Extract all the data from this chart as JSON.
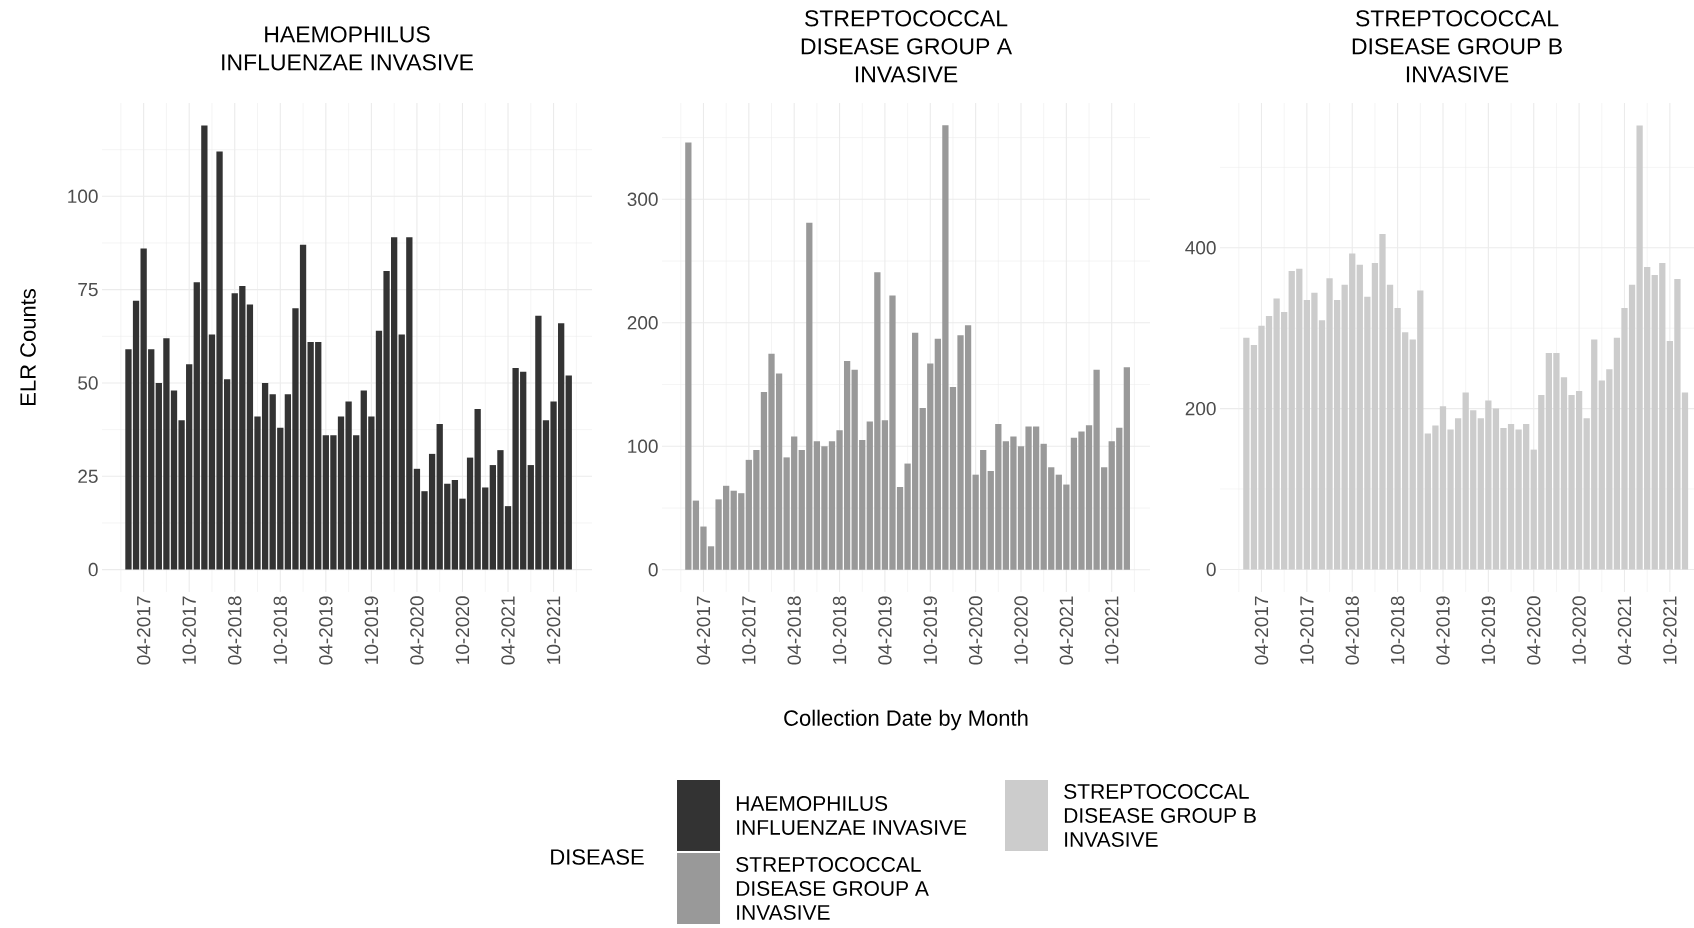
{
  "chart_data": [
    {
      "type": "bar",
      "title": "HAEMOPHILUS INFLUENZAE INVASIVE",
      "ylabel": "ELR Counts",
      "legend": "bottom",
      "grid": true,
      "x": [
        "2017-02",
        "2017-03",
        "2017-04",
        "2017-05",
        "2017-06",
        "2017-07",
        "2017-08",
        "2017-09",
        "2017-10",
        "2017-11",
        "2017-12",
        "2018-01",
        "2018-02",
        "2018-03",
        "2018-04",
        "2018-05",
        "2018-06",
        "2018-07",
        "2018-08",
        "2018-09",
        "2018-10",
        "2018-11",
        "2018-12",
        "2019-01",
        "2019-02",
        "2019-03",
        "2019-04",
        "2019-05",
        "2019-06",
        "2019-07",
        "2019-08",
        "2019-09",
        "2019-10",
        "2019-11",
        "2019-12",
        "2020-01",
        "2020-02",
        "2020-03",
        "2020-04",
        "2020-05",
        "2020-06",
        "2020-07",
        "2020-08",
        "2020-09",
        "2020-10",
        "2020-11",
        "2020-12",
        "2021-01",
        "2021-02",
        "2021-03",
        "2021-04",
        "2021-05",
        "2021-06",
        "2021-07",
        "2021-08",
        "2021-09",
        "2021-10",
        "2021-11",
        "2021-12"
      ],
      "series": [
        {
          "name": "HAEMOPHILUS INFLUENZAE INVASIVE",
          "color": "#333333",
          "values": [
            59,
            72,
            86,
            59,
            50,
            62,
            48,
            40,
            55,
            77,
            119,
            63,
            112,
            51,
            74,
            76,
            71,
            41,
            50,
            47,
            38,
            47,
            70,
            87,
            61,
            61,
            36,
            36,
            41,
            45,
            36,
            48,
            41,
            64,
            80,
            89,
            63,
            89,
            27,
            21,
            31,
            39,
            23,
            24,
            19,
            30,
            43,
            22,
            28,
            32,
            17,
            54,
            53,
            28,
            68,
            40,
            45,
            66,
            52
          ]
        }
      ],
      "xlim": [
        "2016-10-17",
        "2022-03-03"
      ],
      "ylim": [
        -6,
        125
      ],
      "xticks": [
        {
          "value": "2017-01",
          "label": null
        },
        {
          "value": "2017-04",
          "label": "04-2017"
        },
        {
          "value": "2017-07",
          "label": null
        },
        {
          "value": "2017-10",
          "label": "10-2017"
        },
        {
          "value": "2018-01",
          "label": null
        },
        {
          "value": "2018-04",
          "label": "04-2018"
        },
        {
          "value": "2018-07",
          "label": null
        },
        {
          "value": "2018-10",
          "label": "10-2018"
        },
        {
          "value": "2019-01",
          "label": null
        },
        {
          "value": "2019-04",
          "label": "04-2019"
        },
        {
          "value": "2019-07",
          "label": null
        },
        {
          "value": "2019-10",
          "label": "10-2019"
        },
        {
          "value": "2020-01",
          "label": null
        },
        {
          "value": "2020-04",
          "label": "04-2020"
        },
        {
          "value": "2020-07",
          "label": null
        },
        {
          "value": "2020-10",
          "label": "10-2020"
        },
        {
          "value": "2021-01",
          "label": null
        },
        {
          "value": "2021-04",
          "label": "04-2021"
        },
        {
          "value": "2021-07",
          "label": null
        },
        {
          "value": "2021-10",
          "label": "10-2021"
        },
        {
          "value": "2022-01",
          "label": null
        }
      ],
      "yticks": [
        0,
        {
          "value": 12.5,
          "label": null
        },
        25,
        {
          "value": 37.5,
          "label": null
        },
        50,
        {
          "value": 62.5,
          "label": null
        },
        75,
        {
          "value": 87.5,
          "label": null
        },
        100,
        {
          "value": 112.5,
          "label": null
        }
      ]
    },
    {
      "type": "bar",
      "title": "STREPTOCOCCAL DISEASE GROUP A INVASIVE",
      "xlabel": "Collection Date by Month",
      "legend": "bottom",
      "legend_title": "DISEASE",
      "grid": true,
      "x": [
        "2017-02",
        "2017-03",
        "2017-04",
        "2017-05",
        "2017-06",
        "2017-07",
        "2017-08",
        "2017-09",
        "2017-10",
        "2017-11",
        "2017-12",
        "2018-01",
        "2018-02",
        "2018-03",
        "2018-04",
        "2018-05",
        "2018-06",
        "2018-07",
        "2018-08",
        "2018-09",
        "2018-10",
        "2018-11",
        "2018-12",
        "2019-01",
        "2019-02",
        "2019-03",
        "2019-04",
        "2019-05",
        "2019-06",
        "2019-07",
        "2019-08",
        "2019-09",
        "2019-10",
        "2019-11",
        "2019-12",
        "2020-01",
        "2020-02",
        "2020-03",
        "2020-04",
        "2020-05",
        "2020-06",
        "2020-07",
        "2020-08",
        "2020-09",
        "2020-10",
        "2020-11",
        "2020-12",
        "2021-01",
        "2021-02",
        "2021-03",
        "2021-04",
        "2021-05",
        "2021-06",
        "2021-07",
        "2021-08",
        "2021-09",
        "2021-10",
        "2021-11",
        "2021-12"
      ],
      "series": [
        {
          "name": "STREPTOCOCCAL DISEASE GROUP A INVASIVE",
          "color": "#999999",
          "values": [
            346,
            56,
            35,
            19,
            57,
            68,
            64,
            62,
            89,
            97,
            144,
            175,
            159,
            91,
            108,
            97,
            281,
            104,
            100,
            104,
            113,
            169,
            162,
            105,
            120,
            241,
            121,
            222,
            67,
            86,
            192,
            131,
            167,
            187,
            360,
            148,
            190,
            198,
            77,
            97,
            80,
            118,
            104,
            108,
            100,
            116,
            116,
            102,
            83,
            77,
            69,
            107,
            112,
            117,
            162,
            83,
            104,
            115,
            164
          ]
        }
      ],
      "xlim": [
        "2016-10-17",
        "2022-03-03"
      ],
      "ylim": [
        -18,
        378
      ],
      "xticks": [
        {
          "value": "2017-01",
          "label": null
        },
        {
          "value": "2017-04",
          "label": "04-2017"
        },
        {
          "value": "2017-07",
          "label": null
        },
        {
          "value": "2017-10",
          "label": "10-2017"
        },
        {
          "value": "2018-01",
          "label": null
        },
        {
          "value": "2018-04",
          "label": "04-2018"
        },
        {
          "value": "2018-07",
          "label": null
        },
        {
          "value": "2018-10",
          "label": "10-2018"
        },
        {
          "value": "2019-01",
          "label": null
        },
        {
          "value": "2019-04",
          "label": "04-2019"
        },
        {
          "value": "2019-07",
          "label": null
        },
        {
          "value": "2019-10",
          "label": "10-2019"
        },
        {
          "value": "2020-01",
          "label": null
        },
        {
          "value": "2020-04",
          "label": "04-2020"
        },
        {
          "value": "2020-07",
          "label": null
        },
        {
          "value": "2020-10",
          "label": "10-2020"
        },
        {
          "value": "2021-01",
          "label": null
        },
        {
          "value": "2021-04",
          "label": "04-2021"
        },
        {
          "value": "2021-07",
          "label": null
        },
        {
          "value": "2021-10",
          "label": "10-2021"
        },
        {
          "value": "2022-01",
          "label": null
        }
      ],
      "yticks": [
        0,
        {
          "value": 50,
          "label": null
        },
        100,
        {
          "value": 150,
          "label": null
        },
        200,
        {
          "value": 250,
          "label": null
        },
        300,
        {
          "value": 350,
          "label": null
        }
      ]
    },
    {
      "type": "bar",
      "title": "STREPTOCOCCAL DISEASE GROUP B INVASIVE",
      "legend": "bottom",
      "grid": true,
      "x": [
        "2017-02",
        "2017-03",
        "2017-04",
        "2017-05",
        "2017-06",
        "2017-07",
        "2017-08",
        "2017-09",
        "2017-10",
        "2017-11",
        "2017-12",
        "2018-01",
        "2018-02",
        "2018-03",
        "2018-04",
        "2018-05",
        "2018-06",
        "2018-07",
        "2018-08",
        "2018-09",
        "2018-10",
        "2018-11",
        "2018-12",
        "2019-01",
        "2019-02",
        "2019-03",
        "2019-04",
        "2019-05",
        "2019-06",
        "2019-07",
        "2019-08",
        "2019-09",
        "2019-10",
        "2019-11",
        "2019-12",
        "2020-01",
        "2020-02",
        "2020-03",
        "2020-04",
        "2020-05",
        "2020-06",
        "2020-07",
        "2020-08",
        "2020-09",
        "2020-10",
        "2020-11",
        "2020-12",
        "2021-01",
        "2021-02",
        "2021-03",
        "2021-04",
        "2021-05",
        "2021-06",
        "2021-07",
        "2021-08",
        "2021-09",
        "2021-10",
        "2021-11",
        "2021-12"
      ],
      "series": [
        {
          "name": "STREPTOCOCCAL DISEASE GROUP B INVASIVE",
          "color": "#cccccc",
          "values": [
            288,
            279,
            303,
            315,
            337,
            320,
            371,
            374,
            335,
            344,
            310,
            362,
            335,
            354,
            393,
            379,
            339,
            381,
            417,
            354,
            325,
            295,
            286,
            347,
            169,
            179,
            203,
            174,
            188,
            220,
            198,
            188,
            210,
            200,
            176,
            181,
            174,
            181,
            149,
            217,
            269,
            269,
            239,
            217,
            222,
            188,
            286,
            235,
            249,
            288,
            325,
            354,
            552,
            376,
            366,
            381,
            284,
            361,
            220
          ]
        }
      ],
      "xlim": [
        "2016-10-17",
        "2022-01-07"
      ],
      "ylim": [
        -28,
        580
      ],
      "xticks": [
        {
          "value": "2017-01",
          "label": null
        },
        {
          "value": "2017-04",
          "label": "04-2017"
        },
        {
          "value": "2017-07",
          "label": null
        },
        {
          "value": "2017-10",
          "label": "10-2017"
        },
        {
          "value": "2018-01",
          "label": null
        },
        {
          "value": "2018-04",
          "label": "04-2018"
        },
        {
          "value": "2018-07",
          "label": null
        },
        {
          "value": "2018-10",
          "label": "10-2018"
        },
        {
          "value": "2019-01",
          "label": null
        },
        {
          "value": "2019-04",
          "label": "04-2019"
        },
        {
          "value": "2019-07",
          "label": null
        },
        {
          "value": "2019-10",
          "label": "10-2019"
        },
        {
          "value": "2020-01",
          "label": null
        },
        {
          "value": "2020-04",
          "label": "04-2020"
        },
        {
          "value": "2020-07",
          "label": null
        },
        {
          "value": "2020-10",
          "label": "10-2020"
        },
        {
          "value": "2021-01",
          "label": null
        },
        {
          "value": "2021-04",
          "label": "04-2021"
        },
        {
          "value": "2021-07",
          "label": null
        },
        {
          "value": "2021-10",
          "label": "10-2021"
        }
      ],
      "yticks": [
        0,
        {
          "value": 100,
          "label": null
        },
        200,
        {
          "value": 300,
          "label": null
        },
        400,
        {
          "value": 500,
          "label": null
        }
      ]
    }
  ]
}
